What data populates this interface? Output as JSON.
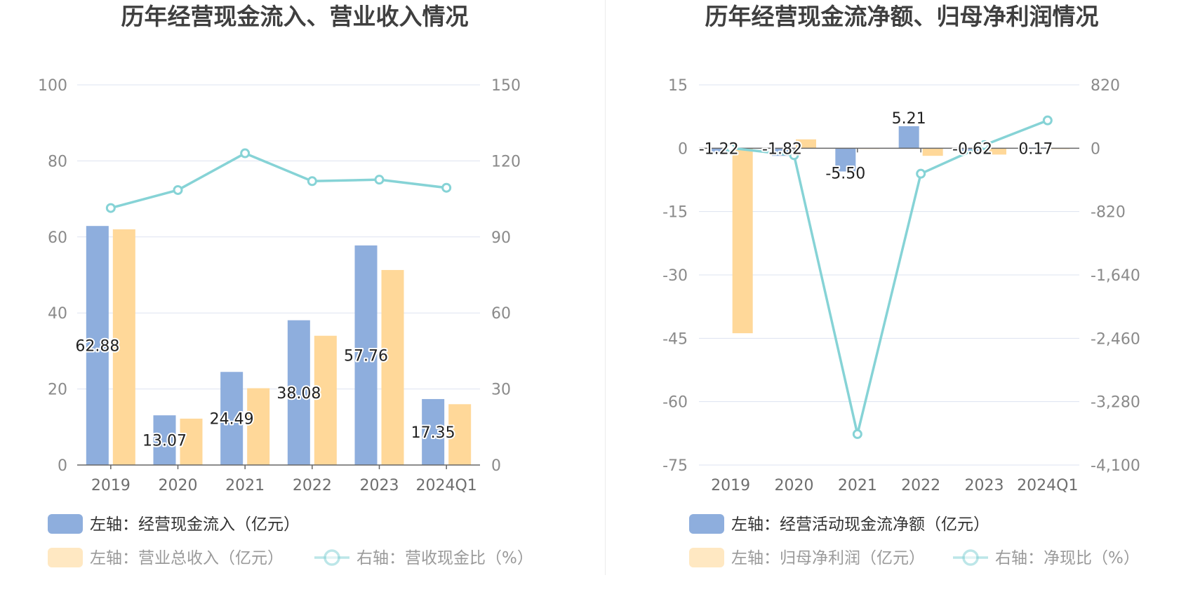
{
  "colors": {
    "bar_a": "#8eaedd",
    "bar_b": "#ffd899",
    "line": "#86d3d6",
    "grid": "#dde3f0",
    "axis": "#666666"
  },
  "chart_data": [
    {
      "type": "bar",
      "title": "历年经营现金流入、营业收入情况",
      "categories": [
        "2019",
        "2020",
        "2021",
        "2022",
        "2023",
        "2024Q1"
      ],
      "left_axis": {
        "ticks": [
          "100",
          "80",
          "60",
          "40",
          "20",
          "0"
        ],
        "min": 0,
        "max": 100
      },
      "right_axis": {
        "ticks": [
          "150",
          "120",
          "90",
          "60",
          "30",
          "0"
        ],
        "min": 0,
        "max": 150
      },
      "series": [
        {
          "name": "左轴：经营现金流入（亿元）",
          "kind": "bar",
          "axis": "left",
          "values": [
            62.88,
            13.07,
            24.49,
            38.08,
            57.76,
            17.35
          ],
          "labels": [
            "62.88",
            "13.07",
            "24.49",
            "38.08",
            "57.76",
            "17.35"
          ]
        },
        {
          "name": "左轴：营业总收入（亿元）",
          "kind": "bar",
          "axis": "left",
          "values": [
            62.0,
            12.2,
            20.2,
            34.0,
            51.3,
            16.0
          ]
        },
        {
          "name": "右轴：营收现金比（%）",
          "kind": "line",
          "axis": "right",
          "values": [
            101.4,
            108.5,
            123.0,
            112.0,
            112.6,
            109.4
          ]
        }
      ],
      "grid": true,
      "legend": "bottom"
    },
    {
      "type": "bar",
      "title": "历年经营现金流净额、归母净利润情况",
      "categories": [
        "2019",
        "2020",
        "2021",
        "2022",
        "2023",
        "2024Q1"
      ],
      "left_axis": {
        "ticks": [
          "15",
          "0",
          "-15",
          "-30",
          "-45",
          "-60",
          "-75"
        ],
        "min": -75,
        "max": 15
      },
      "right_axis": {
        "ticks": [
          "820",
          "0",
          "-820",
          "-1,640",
          "-2,460",
          "-3,280",
          "-4,100"
        ],
        "min": -4100,
        "max": 820
      },
      "series": [
        {
          "name": "左轴：经营活动现金流净额（亿元）",
          "kind": "bar",
          "axis": "left",
          "values": [
            -1.22,
            -1.82,
            -5.5,
            5.21,
            -0.62,
            0.17
          ],
          "labels": [
            "-1.22",
            "-1.82",
            "-5.50",
            "5.21",
            "-0.62",
            "0.17"
          ]
        },
        {
          "name": "左轴：归母净利润（亿元）",
          "kind": "bar",
          "axis": "left",
          "values": [
            -43.8,
            2.1,
            -0.1,
            -1.8,
            -1.5,
            -0.2
          ]
        },
        {
          "name": "右轴：净现比（%）",
          "kind": "line",
          "axis": "right",
          "values": [
            3,
            -90,
            -3700,
            -330,
            40,
            360
          ]
        }
      ],
      "grid": true,
      "legend": "bottom"
    }
  ]
}
